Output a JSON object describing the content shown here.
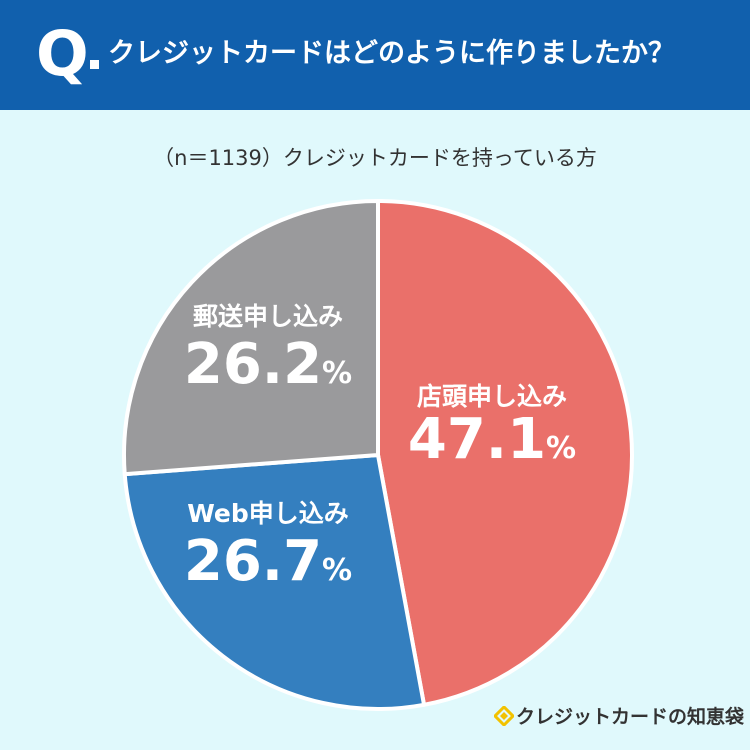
{
  "header": {
    "q_mark": "Q",
    "question": "クレジットカードはどのように作りましたか？"
  },
  "subtitle": "（n＝1139）クレジットカードを持っている方",
  "colors": {
    "header_bg": "#1160ad",
    "page_bg": "#e0f9fc",
    "store": "#ea706a",
    "web": "#347fbf",
    "mail": "#9a9a9c",
    "logo_yellow": "#f2c200"
  },
  "chart_data": {
    "type": "pie",
    "title": "",
    "series": [
      {
        "name": "店頭申し込み",
        "value": 47.1,
        "label": "47.1",
        "color": "#ea706a"
      },
      {
        "name": "Web申し込み",
        "value": 26.7,
        "label": "26.7",
        "color": "#347fbf"
      },
      {
        "name": "郵送申し込み",
        "value": 26.2,
        "label": "26.2",
        "color": "#9a9a9c"
      }
    ],
    "unit": "%",
    "start": "top",
    "direction": "clockwise"
  },
  "footer": {
    "logo_text": "クレジットカードの知恵袋",
    "logo_icon": "diamond-icon"
  }
}
